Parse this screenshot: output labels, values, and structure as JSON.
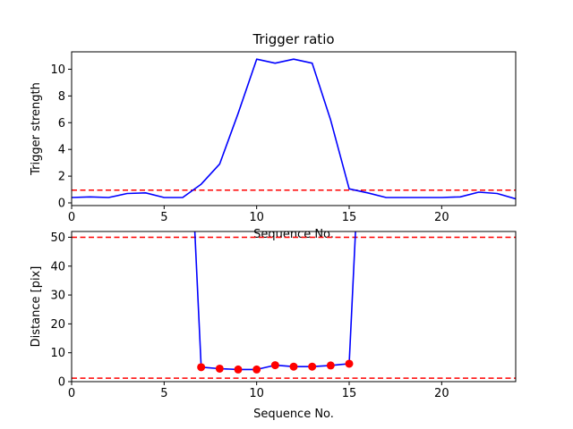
{
  "chart_data": [
    {
      "type": "line",
      "title": "Trigger ratio",
      "xlabel": "Sequence No.",
      "ylabel": "Trigger strength",
      "xlim": [
        0,
        24
      ],
      "ylim": [
        -0.2,
        11.3
      ],
      "xticks": [
        0,
        5,
        10,
        15,
        20
      ],
      "yticks": [
        0,
        2,
        4,
        6,
        8,
        10
      ],
      "grid": false,
      "series": [
        {
          "color": "#0000ff",
          "style": "solid",
          "x": [
            0,
            1,
            2,
            3,
            4,
            5,
            6,
            7,
            8,
            9,
            10,
            11,
            12,
            13,
            14,
            15,
            16,
            17,
            18,
            19,
            20,
            21,
            22,
            23,
            24
          ],
          "y": [
            0.4,
            0.45,
            0.4,
            0.7,
            0.75,
            0.4,
            0.4,
            1.4,
            2.9,
            6.7,
            10.75,
            10.45,
            10.75,
            10.45,
            6.2,
            1.05,
            0.75,
            0.4,
            0.4,
            0.4,
            0.4,
            0.45,
            0.8,
            0.7,
            0.3
          ]
        }
      ],
      "hlines": [
        {
          "y": 0.95,
          "color": "#ff0000",
          "style": "dashed"
        }
      ]
    },
    {
      "type": "line",
      "title": "",
      "xlabel": "Sequence No.",
      "ylabel": "Distance [pix]",
      "xlim": [
        0,
        24
      ],
      "ylim": [
        0,
        52
      ],
      "xticks": [
        0,
        5,
        10,
        15,
        20
      ],
      "yticks": [
        0,
        10,
        20,
        30,
        40,
        50
      ],
      "grid": false,
      "series": [
        {
          "color": "#0000ff",
          "style": "solid",
          "x": [
            6.6,
            7,
            8,
            9,
            10,
            11,
            12,
            13,
            14,
            15,
            15.4
          ],
          "y": [
            60,
            5.0,
            4.5,
            4.2,
            4.2,
            5.7,
            5.2,
            5.2,
            5.6,
            6.2,
            60
          ]
        }
      ],
      "markers": {
        "color": "#ff0000",
        "x": [
          7,
          8,
          9,
          10,
          11,
          12,
          13,
          14,
          15
        ],
        "y": [
          5.0,
          4.5,
          4.2,
          4.2,
          5.7,
          5.2,
          5.2,
          5.6,
          6.2
        ]
      },
      "hlines": [
        {
          "y": 50,
          "color": "#ff0000",
          "style": "dashed"
        },
        {
          "y": 1.2,
          "color": "#ff0000",
          "style": "dashed"
        }
      ]
    }
  ]
}
